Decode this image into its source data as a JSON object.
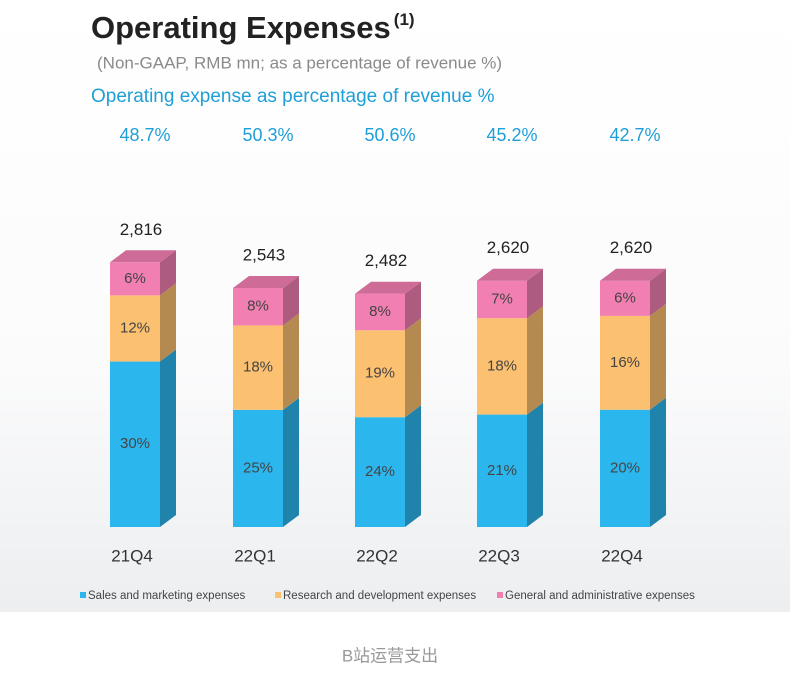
{
  "chart_data": {
    "type": "stacked_bar",
    "title": "Operating Expenses",
    "title_note": "(1)",
    "subtitle": "(Non-GAAP, RMB mn; as a percentage of revenue %)",
    "ratio": {
      "label": "Operating expense as percentage of revenue %",
      "values": [
        48.7,
        50.3,
        50.6,
        45.2,
        42.7
      ],
      "value_labels": [
        "48.7%",
        "50.3%",
        "50.6%",
        "45.2%",
        "42.7%"
      ]
    },
    "categories": [
      "21Q4",
      "22Q1",
      "22Q2",
      "22Q3",
      "22Q4"
    ],
    "totals": {
      "values": [
        2816,
        2543,
        2482,
        2620,
        2620
      ],
      "value_labels": [
        "2,816",
        "2,543",
        "2,482",
        "2,620",
        "2,620"
      ]
    },
    "series": [
      {
        "name": "Sales and marketing expenses",
        "color": "#2cb6ee",
        "values": [
          30,
          25,
          24,
          21,
          20
        ],
        "value_labels": [
          "30%",
          "25%",
          "24%",
          "21%",
          "20%"
        ]
      },
      {
        "name": "Research and development expenses",
        "color": "#fbc070",
        "values": [
          12,
          18,
          19,
          18,
          16
        ],
        "value_labels": [
          "12%",
          "18%",
          "19%",
          "18%",
          "16%"
        ]
      },
      {
        "name": "General and administrative expenses",
        "color": "#f27fb2",
        "values": [
          6,
          8,
          8,
          7,
          6
        ],
        "value_labels": [
          "6%",
          "8%",
          "8%",
          "7%",
          "6%"
        ]
      }
    ],
    "legend": "bottom"
  },
  "caption": "B站运营支出"
}
